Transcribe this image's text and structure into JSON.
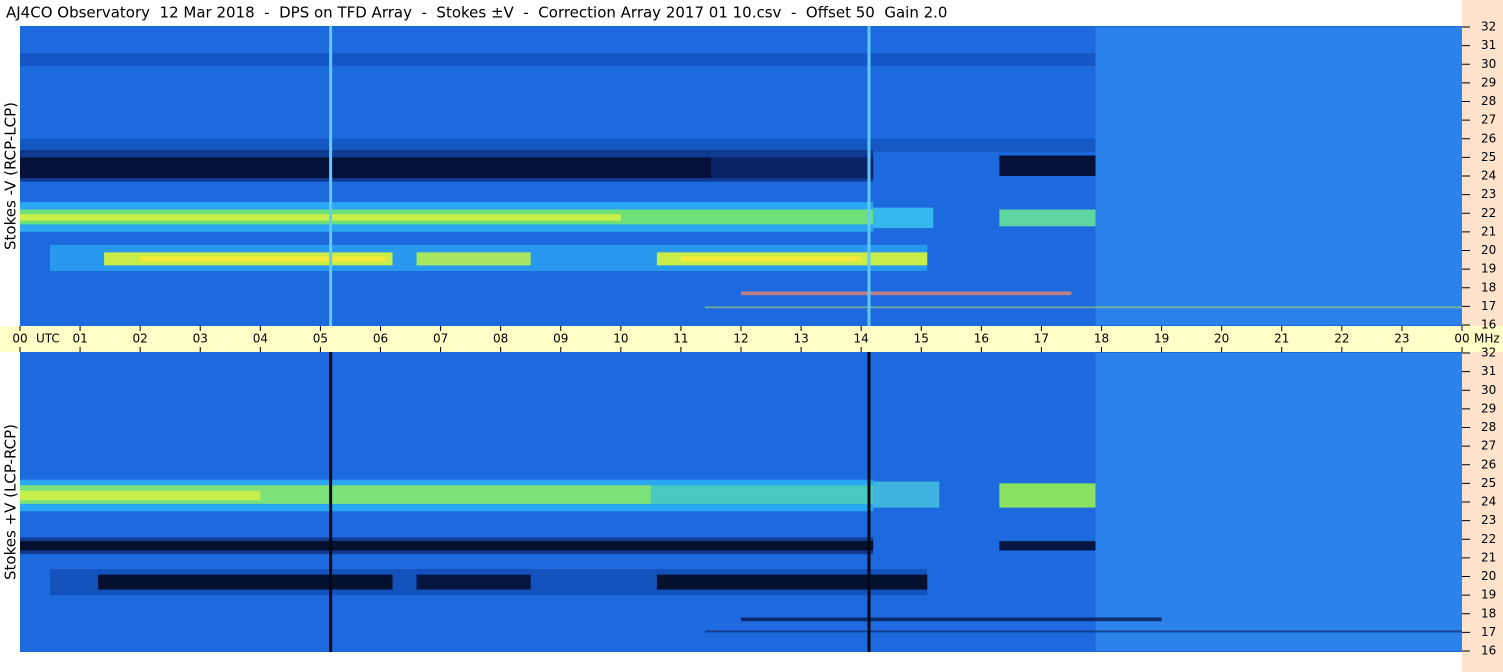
{
  "title": "AJ4CO Observatory  12 Mar 2018  -  DPS on TFD Array  -  Stokes ±V  -  Correction Array 2017 01 10.csv  -  Offset 50  Gain 2.0",
  "chart_data": [
    {
      "type": "spectrogram",
      "ylabel": "Stokes -V (RCP-LCP)",
      "ylim": [
        16,
        32
      ],
      "yticks": [
        16,
        17,
        18,
        19,
        20,
        21,
        22,
        23,
        24,
        25,
        26,
        27,
        28,
        29,
        30,
        31,
        32
      ],
      "xlim": [
        0,
        24
      ],
      "xlabel": "UTC",
      "yunit": "MHz",
      "xticks": [
        {
          "value": 0,
          "label": "00"
        },
        {
          "value": 1,
          "label": "01"
        },
        {
          "value": 2,
          "label": "02"
        },
        {
          "value": 3,
          "label": "03"
        },
        {
          "value": 4,
          "label": "04"
        },
        {
          "value": 5,
          "label": "05"
        },
        {
          "value": 6,
          "label": "06"
        },
        {
          "value": 7,
          "label": "07"
        },
        {
          "value": 8,
          "label": "08"
        },
        {
          "value": 9,
          "label": "09"
        },
        {
          "value": 10,
          "label": "10"
        },
        {
          "value": 11,
          "label": "11"
        },
        {
          "value": 12,
          "label": "12"
        },
        {
          "value": 13,
          "label": "13"
        },
        {
          "value": 14,
          "label": "14"
        },
        {
          "value": 15,
          "label": "15"
        },
        {
          "value": 16,
          "label": "16"
        },
        {
          "value": 17,
          "label": "17"
        },
        {
          "value": 18,
          "label": "18"
        },
        {
          "value": 19,
          "label": "19"
        },
        {
          "value": 20,
          "label": "20"
        },
        {
          "value": 21,
          "label": "21"
        },
        {
          "value": 22,
          "label": "22"
        },
        {
          "value": 23,
          "label": "23"
        },
        {
          "value": 24,
          "label": "00"
        }
      ]
    },
    {
      "type": "spectrogram",
      "ylabel": "Stokes +V (LCP-RCP)",
      "ylim": [
        16,
        32
      ],
      "yticks": [
        16,
        17,
        18,
        19,
        20,
        21,
        22,
        23,
        24,
        25,
        26,
        27,
        28,
        29,
        30,
        31,
        32
      ]
    }
  ]
}
